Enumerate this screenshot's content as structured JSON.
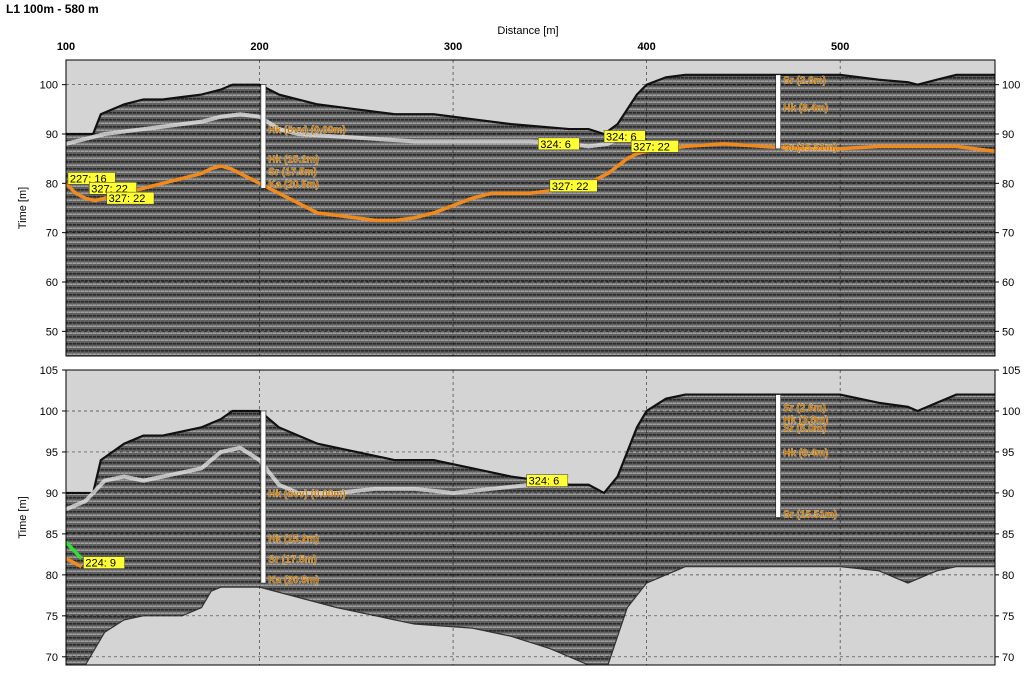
{
  "title": "L1 100m - 580 m",
  "colors": {
    "background_grey": "#d4d4d4",
    "radar_dark": "#4a4a4a",
    "radar_light": "#9a9a9a",
    "horizon_orange": "#f08a1c",
    "horizon_white": "#e8e8e8",
    "label_yellow": "#ffff33",
    "label_text": "#c87800",
    "green_marker": "#33dd33"
  },
  "chart_data": [
    {
      "type": "line",
      "panel": "top",
      "xlabel": "Distance [m]",
      "ylabel": "Time [m]",
      "xlim": [
        100,
        580
      ],
      "ylim": [
        45,
        105
      ],
      "x_ticks": [
        "100",
        "200",
        "300",
        "400",
        "500"
      ],
      "y_ticks": [
        "50",
        "60",
        "70",
        "80",
        "90",
        "100"
      ],
      "grid": true,
      "surface": {
        "name": "",
        "x": [
          100,
          114,
          118,
          130,
          140,
          150,
          160,
          170,
          180,
          186,
          190,
          200,
          210,
          230,
          250,
          270,
          290,
          310,
          330,
          345,
          360,
          370,
          378,
          385,
          390,
          395,
          400,
          410,
          420,
          440,
          460,
          480,
          500,
          520,
          535,
          540,
          550,
          560,
          580
        ],
        "y": [
          90,
          90,
          94,
          96,
          97,
          97,
          97.5,
          98,
          99,
          100,
          100,
          100,
          98,
          96,
          95,
          94,
          94,
          93,
          92,
          91.5,
          91,
          91,
          90,
          92,
          95,
          98,
          100,
          101.5,
          102,
          102,
          102,
          102,
          102,
          101,
          100.5,
          100,
          101,
          102,
          102
        ]
      },
      "series": [
        {
          "name": "",
          "color": "#f08a1c",
          "x": [
            100,
            105,
            110,
            115,
            120,
            130,
            140,
            150,
            160,
            170,
            175,
            180,
            185,
            190,
            200,
            210,
            220,
            230,
            240,
            250,
            260,
            270,
            280,
            290,
            300,
            310,
            320,
            330,
            340,
            350,
            360,
            370,
            380,
            390,
            395,
            400,
            420,
            440,
            460,
            480,
            500,
            520,
            540,
            560,
            580
          ],
          "y": [
            80,
            78,
            77,
            76.5,
            77,
            78,
            79,
            80,
            81,
            82,
            83,
            83.5,
            83,
            82,
            80,
            78,
            76,
            74,
            73.5,
            73,
            72.5,
            72.5,
            73,
            74,
            75.5,
            77,
            78,
            78,
            78,
            78.5,
            79,
            80,
            82,
            85,
            86,
            86.5,
            87.5,
            88,
            87.5,
            87,
            87,
            87.5,
            87.5,
            87.5,
            86.5
          ]
        },
        {
          "name": "",
          "color": "#e8e8e8",
          "x": [
            100,
            110,
            120,
            130,
            140,
            150,
            160,
            170,
            180,
            190,
            200,
            210,
            220,
            240,
            260,
            280,
            300,
            320,
            340,
            360,
            370,
            380,
            385
          ],
          "y": [
            88,
            89,
            90,
            90.5,
            91,
            91.5,
            92,
            92.5,
            93.5,
            94,
            93.5,
            91,
            90,
            89.5,
            89,
            88.5,
            88.5,
            88.5,
            88.5,
            88,
            87.5,
            88,
            89
          ]
        }
      ],
      "labels": [
        {
          "text": "227: 16",
          "x": 101,
          "y": 81,
          "box": true
        },
        {
          "text": "327: 22",
          "x": 112,
          "y": 79,
          "box": true
        },
        {
          "text": "327: 22",
          "x": 121,
          "y": 77,
          "box": true
        },
        {
          "text": "327: 22",
          "x": 350,
          "y": 79.5,
          "box": true
        },
        {
          "text": "324: 6",
          "x": 344,
          "y": 88,
          "box": true
        },
        {
          "text": "324: 6",
          "x": 378,
          "y": 89.5,
          "box": true
        },
        {
          "text": "327: 22",
          "x": 392,
          "y": 87.5,
          "box": true
        }
      ],
      "boreholes": [
        {
          "x": 202,
          "top": 100,
          "bottom": 79,
          "labels": [
            {
              "text": "Hk (övv) (0.00m)",
              "y": 91
            },
            {
              "text": "Hk (15.2m)",
              "y": 85
            },
            {
              "text": "Sr (17.5m)",
              "y": 82.5
            },
            {
              "text": "Ka (20.5m)",
              "y": 80
            }
          ]
        },
        {
          "x": 468,
          "top": 102,
          "bottom": 87,
          "labels": [
            {
              "text": "Sr (2.6m)",
              "y": 101
            },
            {
              "text": "Hk (8.4m)",
              "y": 95.5
            },
            {
              "text": "Sr (15.51m)",
              "y": 87.5
            }
          ]
        }
      ]
    },
    {
      "type": "line",
      "panel": "bottom",
      "xlabel": "",
      "ylabel": "Time [m]",
      "xlim": [
        100,
        580
      ],
      "ylim": [
        69,
        105
      ],
      "y_ticks": [
        "70",
        "75",
        "80",
        "85",
        "90",
        "95",
        "100",
        "105"
      ],
      "grid": true,
      "surface": {
        "name": "",
        "x": [
          100,
          114,
          118,
          130,
          140,
          150,
          160,
          170,
          180,
          186,
          190,
          200,
          210,
          230,
          250,
          270,
          290,
          310,
          330,
          345,
          360,
          370,
          378,
          385,
          390,
          395,
          400,
          410,
          420,
          440,
          460,
          480,
          500,
          520,
          535,
          540,
          550,
          560,
          580
        ],
        "y": [
          90,
          90,
          94,
          96,
          97,
          97,
          97.5,
          98,
          99,
          100,
          100,
          100,
          98,
          96,
          95,
          94,
          94,
          93,
          92,
          91.5,
          91,
          91,
          90,
          92,
          95,
          98,
          100,
          101.5,
          102,
          102,
          102,
          102,
          102,
          101,
          100.5,
          100,
          101,
          102,
          102
        ]
      },
      "bottom_edge": {
        "name": "",
        "x": [
          100,
          110,
          120,
          130,
          140,
          150,
          160,
          170,
          175,
          180,
          200,
          240,
          280,
          310,
          330,
          350,
          370,
          380,
          390,
          400,
          410,
          420,
          440,
          460,
          480,
          500,
          520,
          535,
          540,
          550,
          560,
          580
        ],
        "y": [
          69,
          69,
          73,
          74.5,
          75,
          75,
          75,
          76,
          78,
          78.5,
          78.5,
          76,
          74,
          73.5,
          72.5,
          71,
          69,
          69,
          76,
          79,
          80,
          81,
          81,
          81,
          81,
          81,
          80.5,
          79,
          79.5,
          80.5,
          81,
          81
        ]
      },
      "series": [
        {
          "name": "",
          "color": "#e8e8e8",
          "x": [
            100,
            110,
            120,
            130,
            140,
            150,
            160,
            170,
            180,
            190,
            200,
            210,
            220,
            240,
            260,
            280,
            300,
            320,
            340,
            360
          ],
          "y": [
            88,
            89,
            91.5,
            92,
            91.5,
            92,
            92.5,
            93,
            95,
            95.5,
            94,
            91,
            90,
            90,
            90.5,
            90.5,
            90,
            90.5,
            91,
            91.5
          ]
        },
        {
          "name": "",
          "color": "#f08a1c",
          "x": [
            100,
            104,
            108
          ],
          "y": [
            82,
            81.5,
            81
          ]
        },
        {
          "name": "",
          "color": "#33dd33",
          "x": [
            100,
            104,
            108
          ],
          "y": [
            84,
            83,
            82
          ]
        }
      ],
      "labels": [
        {
          "text": "224: 9",
          "x": 109,
          "y": 81.5,
          "box": true
        },
        {
          "text": "324: 6",
          "x": 338,
          "y": 91.5,
          "box": true
        }
      ],
      "boreholes": [
        {
          "x": 202,
          "top": 100,
          "bottom": 79,
          "labels": [
            {
              "text": "Hk (övv) (0.00m)",
              "y": 90
            },
            {
              "text": "Hk (15.2m)",
              "y": 84.5
            },
            {
              "text": "Sr (17.5m)",
              "y": 82
            },
            {
              "text": "Ka (20.5m)",
              "y": 79.5
            }
          ]
        },
        {
          "x": 468,
          "top": 102,
          "bottom": 87,
          "labels": [
            {
              "text": "Sr (2.6m)",
              "y": 100.5
            },
            {
              "text": "Hk (3.8m)",
              "y": 99
            },
            {
              "text": "Sr (5.0m)",
              "y": 98
            },
            {
              "text": "Hk (8.4m)",
              "y": 95
            },
            {
              "text": "Sr (15.51m)",
              "y": 87.5
            }
          ]
        }
      ]
    }
  ]
}
